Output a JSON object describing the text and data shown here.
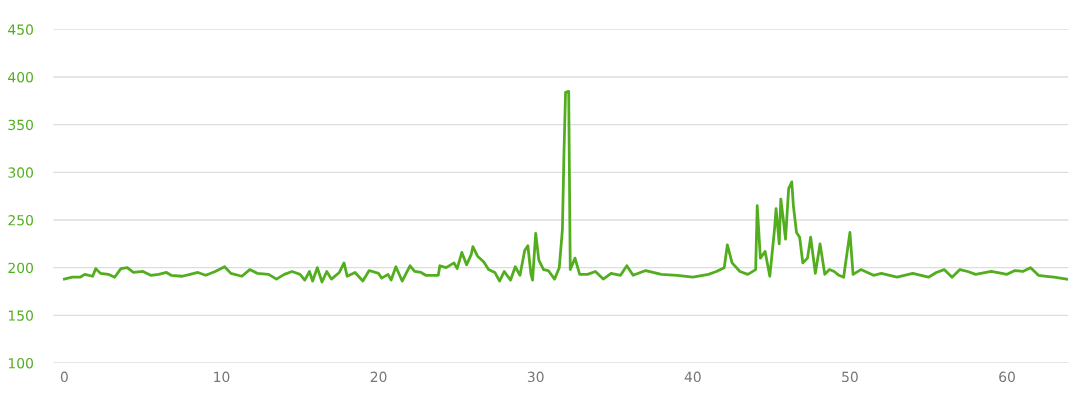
{
  "chart_data": {
    "type": "line",
    "x": [
      0,
      0.5,
      1,
      1.3,
      1.8,
      2,
      2.3,
      2.8,
      3.2,
      3.6,
      4,
      4.4,
      5,
      5.5,
      6,
      6.5,
      6.8,
      7.5,
      8,
      8.5,
      9,
      9.6,
      10.2,
      10.6,
      11.3,
      11.8,
      12.3,
      13,
      13.5,
      14,
      14.5,
      15,
      15.3,
      15.6,
      15.8,
      16.1,
      16.4,
      16.7,
      17,
      17.5,
      17.8,
      18,
      18.5,
      19,
      19.4,
      20,
      20.2,
      20.6,
      20.8,
      21.1,
      21.5,
      22,
      22.3,
      22.7,
      23,
      23.8,
      23.9,
      24.3,
      24.8,
      25,
      25.3,
      25.6,
      25.9,
      26,
      26.3,
      26.7,
      27,
      27.4,
      27.7,
      28,
      28.4,
      28.7,
      29,
      29.3,
      29.5,
      29.7,
      29.8,
      30,
      30.2,
      30.5,
      30.8,
      31.2,
      31.5,
      31.7,
      31.8,
      31.9,
      32.1,
      32.2,
      32.5,
      32.8,
      33.3,
      33.8,
      34.3,
      34.8,
      35.4,
      35.8,
      36.2,
      37,
      38,
      39,
      40,
      41,
      41.5,
      42,
      42.2,
      42.5,
      43,
      43.5,
      44,
      44.1,
      44.3,
      44.6,
      44.9,
      45.2,
      45.3,
      45.5,
      45.6,
      45.8,
      45.9,
      46.1,
      46.3,
      46.4,
      46.6,
      46.8,
      47,
      47.3,
      47.5,
      47.8,
      48.1,
      48.4,
      48.7,
      49,
      49.3,
      49.6,
      50,
      50.2,
      50.7,
      51.5,
      52,
      53,
      54,
      55,
      55.5,
      56,
      56.5,
      57,
      57.5,
      58,
      59,
      60,
      60.5,
      61,
      61.5,
      62,
      62.5,
      63,
      63.8
    ],
    "series": [
      {
        "color": "#52ae1f",
        "values": [
          188,
          190,
          190,
          193,
          191,
          199,
          194,
          193,
          190,
          199,
          200,
          195,
          196,
          192,
          193,
          195,
          192,
          191,
          193,
          195,
          192,
          196,
          201,
          194,
          191,
          198,
          194,
          193,
          188,
          193,
          196,
          193,
          187,
          196,
          186,
          200,
          185,
          196,
          188,
          195,
          205,
          191,
          195,
          186,
          197,
          194,
          189,
          193,
          187,
          201,
          186,
          202,
          196,
          195,
          192,
          192,
          202,
          200,
          205,
          199,
          216,
          203,
          214,
          222,
          212,
          206,
          198,
          195,
          186,
          196,
          187,
          201,
          192,
          218,
          223,
          193,
          187,
          236,
          208,
          198,
          197,
          188,
          200,
          240,
          320,
          384,
          385,
          198,
          210,
          193,
          193,
          196,
          188,
          194,
          192,
          202,
          192,
          197,
          193,
          192,
          190,
          193,
          196,
          200,
          224,
          205,
          196,
          193,
          198,
          265,
          210,
          217,
          191,
          240,
          262,
          225,
          272,
          245,
          230,
          283,
          290,
          265,
          237,
          232,
          205,
          210,
          232,
          194,
          225,
          193,
          198,
          196,
          192,
          190,
          237,
          193,
          198,
          192,
          194,
          190,
          194,
          190,
          195,
          198,
          190,
          198,
          196,
          193,
          196,
          193,
          197,
          196,
          200,
          192,
          191,
          190,
          188
        ]
      }
    ],
    "xlim": [
      -0.7,
      63.9
    ],
    "ylim": [
      100,
      450
    ],
    "xticks": [
      0,
      10,
      20,
      30,
      40,
      50,
      60
    ],
    "yticks": [
      100,
      150,
      200,
      250,
      300,
      350,
      400,
      450
    ],
    "grid": "y",
    "marker": "none",
    "line_style": "solid"
  }
}
